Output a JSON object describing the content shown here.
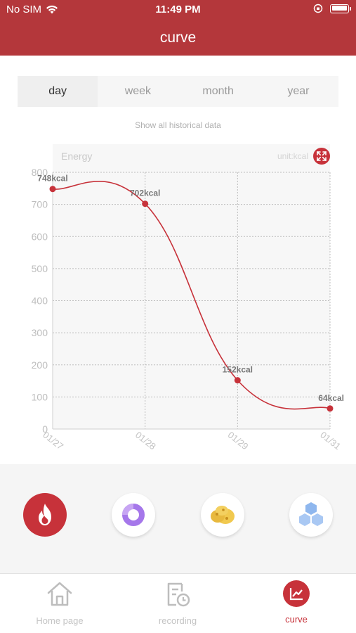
{
  "status_bar": {
    "carrier": "No SIM",
    "time": "11:49 PM"
  },
  "nav": {
    "title": "curve"
  },
  "period_tabs": [
    {
      "label": "day",
      "active": true
    },
    {
      "label": "week",
      "active": false
    },
    {
      "label": "month",
      "active": false
    },
    {
      "label": "year",
      "active": false
    }
  ],
  "history_link": "Show all historical data",
  "chart_header": {
    "title": "Energy",
    "unit": "unit:kcal"
  },
  "chart_data": {
    "type": "line",
    "title": "Energy",
    "unit": "unit:kcal",
    "x": [
      "01/27",
      "01/28",
      "01/29",
      "01/31"
    ],
    "series": [
      {
        "values": [
          748,
          702,
          152,
          64
        ],
        "labels": [
          "748kcal",
          "702kcal",
          "152kcal",
          "64kcal"
        ]
      }
    ],
    "ylim": [
      0,
      800
    ],
    "yticks": [
      0,
      100,
      200,
      300,
      400,
      500,
      600,
      700,
      800
    ],
    "grid": true,
    "color": "#c7323a"
  },
  "categories": [
    {
      "icon": "flame-icon",
      "active": true
    },
    {
      "icon": "ring-icon",
      "active": false
    },
    {
      "icon": "food-icon",
      "active": false
    },
    {
      "icon": "hexagon-cluster-icon",
      "active": false
    }
  ],
  "tabbar": {
    "home_label": "Home page",
    "recording_label": "recording",
    "curve_label": "curve"
  },
  "colors": {
    "brand": "#b4373b",
    "accent": "#c7323a",
    "muted": "#c4c4c4"
  }
}
